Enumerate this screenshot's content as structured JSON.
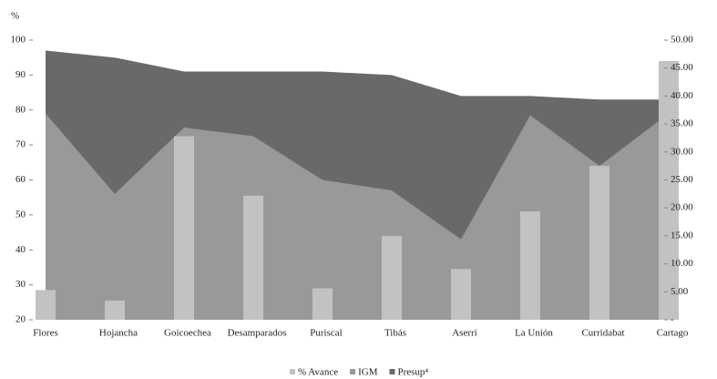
{
  "chart_data": {
    "type": "bar-area",
    "ylabel": "%",
    "categories": [
      "Flores",
      "Hojancha",
      "Goicoechea",
      "Desamparados",
      "Puriscal",
      "Tibás",
      "Aserrí",
      "La Unión",
      "Curridabat",
      "Cartago"
    ],
    "series": [
      {
        "name": "% Avance",
        "type": "bar",
        "color": "#c2c2c2",
        "values": [
          28.5,
          25.5,
          72.5,
          55.5,
          29,
          44,
          34.5,
          51,
          64,
          94
        ]
      },
      {
        "name": "IGM",
        "type": "area",
        "color": "#999999",
        "values": [
          79,
          56,
          75,
          72.5,
          60,
          57,
          43,
          78.5,
          64,
          79
        ]
      },
      {
        "name": "Presup⁴",
        "type": "area",
        "color": "#696969",
        "values": [
          97,
          95,
          91,
          91,
          91,
          90,
          84,
          84,
          83,
          83
        ]
      }
    ],
    "ylim": [
      20,
      100
    ],
    "yticks": [
      20,
      30,
      40,
      50,
      60,
      70,
      80,
      90,
      100
    ],
    "y2lim": [
      0,
      50
    ],
    "y2ticks": [
      {
        "value": 0,
        "label": "-"
      },
      {
        "value": 5,
        "label": "5.00"
      },
      {
        "value": 10,
        "label": "10.00"
      },
      {
        "value": 15,
        "label": "15.00"
      },
      {
        "value": 20,
        "label": "20.00"
      },
      {
        "value": 25,
        "label": "25.00"
      },
      {
        "value": 30,
        "label": "30.00"
      },
      {
        "value": 35,
        "label": "35.00"
      },
      {
        "value": 40,
        "label": "40.00"
      },
      {
        "value": 45,
        "label": "45.00"
      },
      {
        "value": 50,
        "label": "50.00"
      }
    ]
  }
}
